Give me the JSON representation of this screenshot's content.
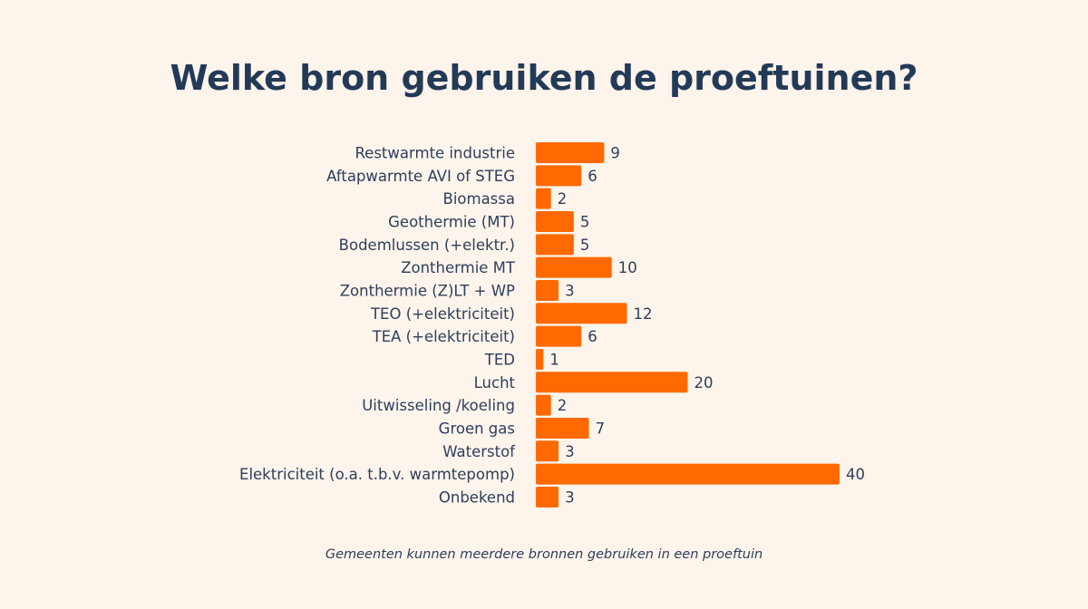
{
  "chart_data": {
    "type": "bar",
    "orientation": "horizontal",
    "title": "Welke bron gebruiken de proeftuinen?",
    "footnote": "Gemeenten kunnen meerdere bronnen gebruiken in een proeftuin",
    "categories": [
      "Restwarmte industrie",
      "Aftapwarmte AVI of STEG",
      "Biomassa",
      "Geothermie (MT)",
      "Bodemlussen (+elektr.)",
      "Zonthermie MT",
      "Zonthermie (Z)LT + WP",
      "TEO (+elektriciteit)",
      "TEA (+elektriciteit)",
      "TED",
      "Lucht",
      "Uitwisseling /koeling",
      "Groen gas",
      "Waterstof",
      "Elektriciteit (o.a. t.b.v. warmtepomp)",
      "Onbekend"
    ],
    "values": [
      9,
      6,
      2,
      5,
      5,
      10,
      3,
      12,
      6,
      1,
      20,
      2,
      7,
      3,
      40,
      3
    ],
    "xlim": [
      0,
      40
    ],
    "grid": false,
    "data_labels": true,
    "bar_color": "#ff6a00",
    "background_color": "#fdf4ec",
    "text_color": "#233a57"
  }
}
